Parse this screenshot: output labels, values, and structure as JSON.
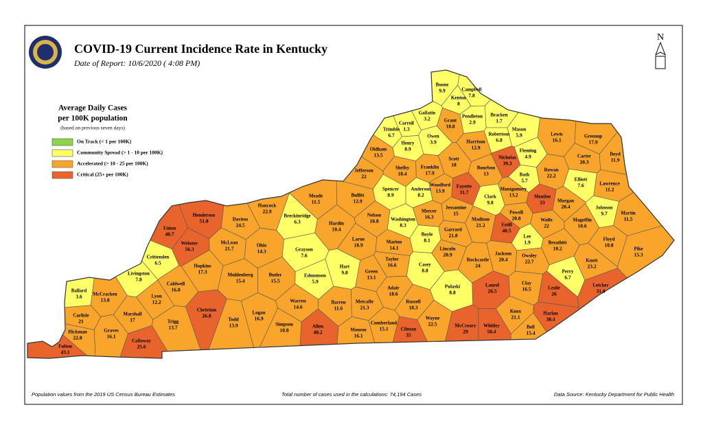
{
  "header": {
    "title": "COVID-19 Current Incidence Rate in Kentucky",
    "date": "Date of Report: 10/6/2020 ( 4:08 PM)"
  },
  "legend": {
    "title_lines": [
      "Average Daily Cases",
      "per 100K population"
    ],
    "note": "(based on previous seven days)",
    "items": [
      {
        "label": "On Track (< 1 per 100K)",
        "color": "#8dd44b"
      },
      {
        "label": "Community Spread (> 1 - 10 per 100K)",
        "color": "#ffff66"
      },
      {
        "label": "Accelerated (> 10 - 25 per 100K)",
        "color": "#f9a52b"
      },
      {
        "label": "Critical (25+ per 100K)",
        "color": "#e8642c"
      }
    ]
  },
  "counties": [
    {
      "name": "Boone",
      "value": 9.9,
      "color": "#ffff66"
    },
    {
      "name": "Campbell",
      "value": 7.8,
      "color": "#ffff66"
    },
    {
      "name": "Kenton",
      "value": 8,
      "color": "#ffff66"
    },
    {
      "name": "Gallatin",
      "value": 3.2,
      "color": "#ffff66"
    },
    {
      "name": "Carroll",
      "value": 1.3,
      "color": "#ffff66"
    },
    {
      "name": "Trimble",
      "value": 6.7,
      "color": "#ffff66"
    },
    {
      "name": "Grant",
      "value": 10.8,
      "color": "#f9a52b"
    },
    {
      "name": "Pendleton",
      "value": 2.9,
      "color": "#ffff66"
    },
    {
      "name": "Bracken",
      "value": 1.7,
      "color": "#ffff66"
    },
    {
      "name": "Mason",
      "value": 5.9,
      "color": "#ffff66"
    },
    {
      "name": "Robertson",
      "value": 6.8,
      "color": "#ffff66"
    },
    {
      "name": "Owen",
      "value": 3.9,
      "color": "#ffff66"
    },
    {
      "name": "Henry",
      "value": 8.9,
      "color": "#ffff66"
    },
    {
      "name": "Oldham",
      "value": 13.5,
      "color": "#f9a52b"
    },
    {
      "name": "Harrison",
      "value": 12.9,
      "color": "#f9a52b"
    },
    {
      "name": "Lewis",
      "value": 16.1,
      "color": "#f9a52b"
    },
    {
      "name": "Greenup",
      "value": 17.9,
      "color": "#f9a52b"
    },
    {
      "name": "Boyd",
      "value": 11.9,
      "color": "#f9a52b"
    },
    {
      "name": "Carter",
      "value": 20.3,
      "color": "#f9a52b"
    },
    {
      "name": "Fleming",
      "value": 4.9,
      "color": "#ffff66"
    },
    {
      "name": "Nicholas",
      "value": 39.3,
      "color": "#e8642c"
    },
    {
      "name": "Scott",
      "value": 18,
      "color": "#f9a52b"
    },
    {
      "name": "Franklin",
      "value": 17.9,
      "color": "#f9a52b"
    },
    {
      "name": "Shelby",
      "value": 18.4,
      "color": "#f9a52b"
    },
    {
      "name": "Jefferson",
      "value": 22,
      "color": "#f9a52b"
    },
    {
      "name": "Bourbon",
      "value": 13,
      "color": "#f9a52b"
    },
    {
      "name": "Bath",
      "value": 5.7,
      "color": "#ffff66"
    },
    {
      "name": "Rowan",
      "value": 22.2,
      "color": "#f9a52b"
    },
    {
      "name": "Elliott",
      "value": 7.6,
      "color": "#ffff66"
    },
    {
      "name": "Lawrence",
      "value": 11.2,
      "color": "#f9a52b"
    },
    {
      "name": "Woodford",
      "value": 13.9,
      "color": "#f9a52b"
    },
    {
      "name": "Anderson",
      "value": 8.2,
      "color": "#ffff66"
    },
    {
      "name": "Spencer",
      "value": 8.9,
      "color": "#ffff66"
    },
    {
      "name": "Fayette",
      "value": 31.7,
      "color": "#e8642c"
    },
    {
      "name": "Montgomery",
      "value": 13.2,
      "color": "#f9a52b"
    },
    {
      "name": "Bullitt",
      "value": 12.9,
      "color": "#f9a52b"
    },
    {
      "name": "Clark",
      "value": 9.8,
      "color": "#ffff66"
    },
    {
      "name": "Menifee",
      "value": 33,
      "color": "#e8642c"
    },
    {
      "name": "Morgan",
      "value": 20.4,
      "color": "#f9a52b"
    },
    {
      "name": "Johnson",
      "value": 9.7,
      "color": "#ffff66"
    },
    {
      "name": "Martin",
      "value": 11.5,
      "color": "#f9a52b"
    },
    {
      "name": "Meade",
      "value": 11.5,
      "color": "#f9a52b"
    },
    {
      "name": "Hancock",
      "value": 22.9,
      "color": "#f9a52b"
    },
    {
      "name": "Henderson",
      "value": 51.8,
      "color": "#e8642c"
    },
    {
      "name": "Daviess",
      "value": 24.5,
      "color": "#f9a52b"
    },
    {
      "name": "Breckinridge",
      "value": 6.3,
      "color": "#ffff66"
    },
    {
      "name": "Hardin",
      "value": 10.4,
      "color": "#f9a52b"
    },
    {
      "name": "Nelson",
      "value": 10.8,
      "color": "#f9a52b"
    },
    {
      "name": "Jessamine",
      "value": 15,
      "color": "#f9a52b"
    },
    {
      "name": "Mercer",
      "value": 16.3,
      "color": "#f9a52b"
    },
    {
      "name": "Washington",
      "value": 8.3,
      "color": "#ffff66"
    },
    {
      "name": "Powell",
      "value": 20.8,
      "color": "#f9a52b"
    },
    {
      "name": "Estill",
      "value": 40.5,
      "color": "#e8642c"
    },
    {
      "name": "Wolfe",
      "value": 22,
      "color": "#f9a52b"
    },
    {
      "name": "Magoffin",
      "value": 10.6,
      "color": "#f9a52b"
    },
    {
      "name": "Madison",
      "value": 21.2,
      "color": "#f9a52b"
    },
    {
      "name": "Garrard",
      "value": 21.8,
      "color": "#f9a52b"
    },
    {
      "name": "Boyle",
      "value": 8.1,
      "color": "#ffff66"
    },
    {
      "name": "Union",
      "value": 40.7,
      "color": "#e8642c"
    },
    {
      "name": "Webster",
      "value": 56.3,
      "color": "#e8642c"
    },
    {
      "name": "McLean",
      "value": 21.7,
      "color": "#f9a52b"
    },
    {
      "name": "Ohio",
      "value": 14.3,
      "color": "#f9a52b"
    },
    {
      "name": "Grayson",
      "value": 7.6,
      "color": "#ffff66"
    },
    {
      "name": "Larue",
      "value": 18.9,
      "color": "#f9a52b"
    },
    {
      "name": "Marion",
      "value": 14.1,
      "color": "#f9a52b"
    },
    {
      "name": "Lee",
      "value": 1.9,
      "color": "#ffff66"
    },
    {
      "name": "Breathitt",
      "value": 10.2,
      "color": "#f9a52b"
    },
    {
      "name": "Floyd",
      "value": 10.8,
      "color": "#f9a52b"
    },
    {
      "name": "Lincoln",
      "value": 20.9,
      "color": "#f9a52b"
    },
    {
      "name": "Jackson",
      "value": 20.4,
      "color": "#f9a52b"
    },
    {
      "name": "Owsley",
      "value": 22.7,
      "color": "#f9a52b"
    },
    {
      "name": "Pike",
      "value": 15.3,
      "color": "#f9a52b"
    },
    {
      "name": "Taylor",
      "value": 16.6,
      "color": "#f9a52b"
    },
    {
      "name": "Rockcastle",
      "value": 24,
      "color": "#f9a52b"
    },
    {
      "name": "Knott",
      "value": 23.2,
      "color": "#f9a52b"
    },
    {
      "name": "Crittenden",
      "value": 6.5,
      "color": "#ffff66"
    },
    {
      "name": "Hopkins",
      "value": 17.3,
      "color": "#f9a52b"
    },
    {
      "name": "Muhlenberg",
      "value": 15.4,
      "color": "#f9a52b"
    },
    {
      "name": "Butler",
      "value": 15.5,
      "color": "#f9a52b"
    },
    {
      "name": "Hart",
      "value": 9.8,
      "color": "#ffff66"
    },
    {
      "name": "Casey",
      "value": 8.8,
      "color": "#ffff66"
    },
    {
      "name": "Green",
      "value": 13.1,
      "color": "#f9a52b"
    },
    {
      "name": "Perry",
      "value": 6.7,
      "color": "#ffff66"
    },
    {
      "name": "Livingston",
      "value": 7.8,
      "color": "#ffff66"
    },
    {
      "name": "Ballard",
      "value": 3.6,
      "color": "#ffff66"
    },
    {
      "name": "McCracken",
      "value": 13.8,
      "color": "#f9a52b"
    },
    {
      "name": "Caldwell",
      "value": 16.8,
      "color": "#f9a52b"
    },
    {
      "name": "Edmonson",
      "value": 5.9,
      "color": "#ffff66"
    },
    {
      "name": "Adair",
      "value": 18.6,
      "color": "#f9a52b"
    },
    {
      "name": "Pulaski",
      "value": 8.8,
      "color": "#ffff66"
    },
    {
      "name": "Laurel",
      "value": 26.5,
      "color": "#e8642c"
    },
    {
      "name": "Clay",
      "value": 16.5,
      "color": "#f9a52b"
    },
    {
      "name": "Leslie",
      "value": 26,
      "color": "#e8642c"
    },
    {
      "name": "Letcher",
      "value": 31.8,
      "color": "#e8642c"
    },
    {
      "name": "Lyon",
      "value": 12.2,
      "color": "#f9a52b"
    },
    {
      "name": "Warren",
      "value": 14.6,
      "color": "#f9a52b"
    },
    {
      "name": "Barren",
      "value": 11.6,
      "color": "#f9a52b"
    },
    {
      "name": "Metcalfe",
      "value": 21.3,
      "color": "#f9a52b"
    },
    {
      "name": "Russell",
      "value": 18.3,
      "color": "#f9a52b"
    },
    {
      "name": "Christian",
      "value": 26.8,
      "color": "#e8642c"
    },
    {
      "name": "Carlisle",
      "value": 21,
      "color": "#f9a52b"
    },
    {
      "name": "Marshall",
      "value": 17,
      "color": "#f9a52b"
    },
    {
      "name": "Logan",
      "value": 16.9,
      "color": "#f9a52b"
    },
    {
      "name": "Todd",
      "value": 13.9,
      "color": "#f9a52b"
    },
    {
      "name": "Trigg",
      "value": 13.7,
      "color": "#f9a52b"
    },
    {
      "name": "Knox",
      "value": 21.1,
      "color": "#f9a52b"
    },
    {
      "name": "Harlan",
      "value": 38.4,
      "color": "#e8642c"
    },
    {
      "name": "Bell",
      "value": 15.4,
      "color": "#f9a52b"
    },
    {
      "name": "Simpson",
      "value": 10.8,
      "color": "#f9a52b"
    },
    {
      "name": "Allen",
      "value": 40.2,
      "color": "#e8642c"
    },
    {
      "name": "Monroe",
      "value": 16.1,
      "color": "#f9a52b"
    },
    {
      "name": "Cumberland",
      "value": 15.1,
      "color": "#f9a52b"
    },
    {
      "name": "Clinton",
      "value": 35,
      "color": "#e8642c"
    },
    {
      "name": "Wayne",
      "value": 22.5,
      "color": "#f9a52b"
    },
    {
      "name": "McCreary",
      "value": 29,
      "color": "#e8642c"
    },
    {
      "name": "Whitley",
      "value": 50.4,
      "color": "#e8642c"
    },
    {
      "name": "Graves",
      "value": 16.1,
      "color": "#f9a52b"
    },
    {
      "name": "Hickman",
      "value": 22.8,
      "color": "#f9a52b"
    },
    {
      "name": "Calloway",
      "value": 25.6,
      "color": "#e8642c"
    },
    {
      "name": "Fulton",
      "value": 43.1,
      "color": "#e8642c"
    }
  ],
  "footer": {
    "left": "Population values from the 2019 US Census Bureau Estimates",
    "center": "Total number of cases used in the calculations: 74,194 Cases",
    "right": "Data Source: Kentucky Department for Public Health"
  }
}
